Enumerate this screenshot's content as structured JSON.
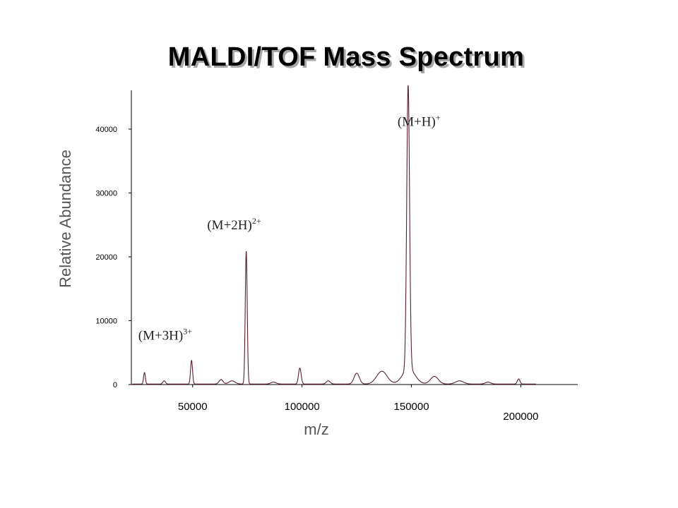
{
  "chart_data": {
    "type": "line",
    "title": "MALDI/TOF Mass Spectrum",
    "xlabel": "m/z",
    "ylabel": "Relative Abundance",
    "xlim": [
      22000,
      226000
    ],
    "ylim": [
      0,
      46000
    ],
    "x_ticks": [
      {
        "value": 50000,
        "label": "50000"
      },
      {
        "value": 100000,
        "label": "100000"
      },
      {
        "value": 150000,
        "label": "150000"
      },
      {
        "value": 200000,
        "label": "200000"
      }
    ],
    "y_ticks": [
      {
        "value": 0,
        "label": "0"
      },
      {
        "value": 10000,
        "label": "10000"
      },
      {
        "value": 20000,
        "label": "20000"
      },
      {
        "value": 30000,
        "label": "30000"
      },
      {
        "value": 40000,
        "label": "40000"
      }
    ],
    "series": [
      {
        "line_color": "#5a1f2b",
        "peaks": [
          {
            "mz": 28000,
            "height": 1800,
            "width": 400
          },
          {
            "mz": 37000,
            "height": 500,
            "width": 600
          },
          {
            "mz": 49500,
            "height": 3700,
            "width": 450
          },
          {
            "mz": 63000,
            "height": 700,
            "width": 900
          },
          {
            "mz": 68000,
            "height": 500,
            "width": 1400
          },
          {
            "mz": 74500,
            "height": 20800,
            "width": 450
          },
          {
            "mz": 87000,
            "height": 300,
            "width": 1200
          },
          {
            "mz": 99000,
            "height": 2500,
            "width": 600
          },
          {
            "mz": 112000,
            "height": 500,
            "width": 900
          },
          {
            "mz": 125000,
            "height": 1700,
            "width": 1200
          },
          {
            "mz": 136500,
            "height": 2000,
            "width": 2400
          },
          {
            "mz": 148500,
            "height": 44400,
            "width": 650
          },
          {
            "mz": 148800,
            "height": 2400,
            "width": 2800
          },
          {
            "mz": 160500,
            "height": 1200,
            "width": 1800
          },
          {
            "mz": 172000,
            "height": 500,
            "width": 1800
          },
          {
            "mz": 185000,
            "height": 300,
            "width": 1200
          },
          {
            "mz": 199000,
            "height": 800,
            "width": 600
          }
        ]
      }
    ],
    "annotations": [
      {
        "base": "(M+3H)",
        "sup": "3+",
        "mz": 40000,
        "y": 7000
      },
      {
        "base": "(M+2H)",
        "sup": "2+",
        "mz": 71500,
        "y": 24300
      },
      {
        "base": "(M+H)",
        "sup": "+",
        "mz": 158500,
        "y": 40500
      }
    ]
  }
}
